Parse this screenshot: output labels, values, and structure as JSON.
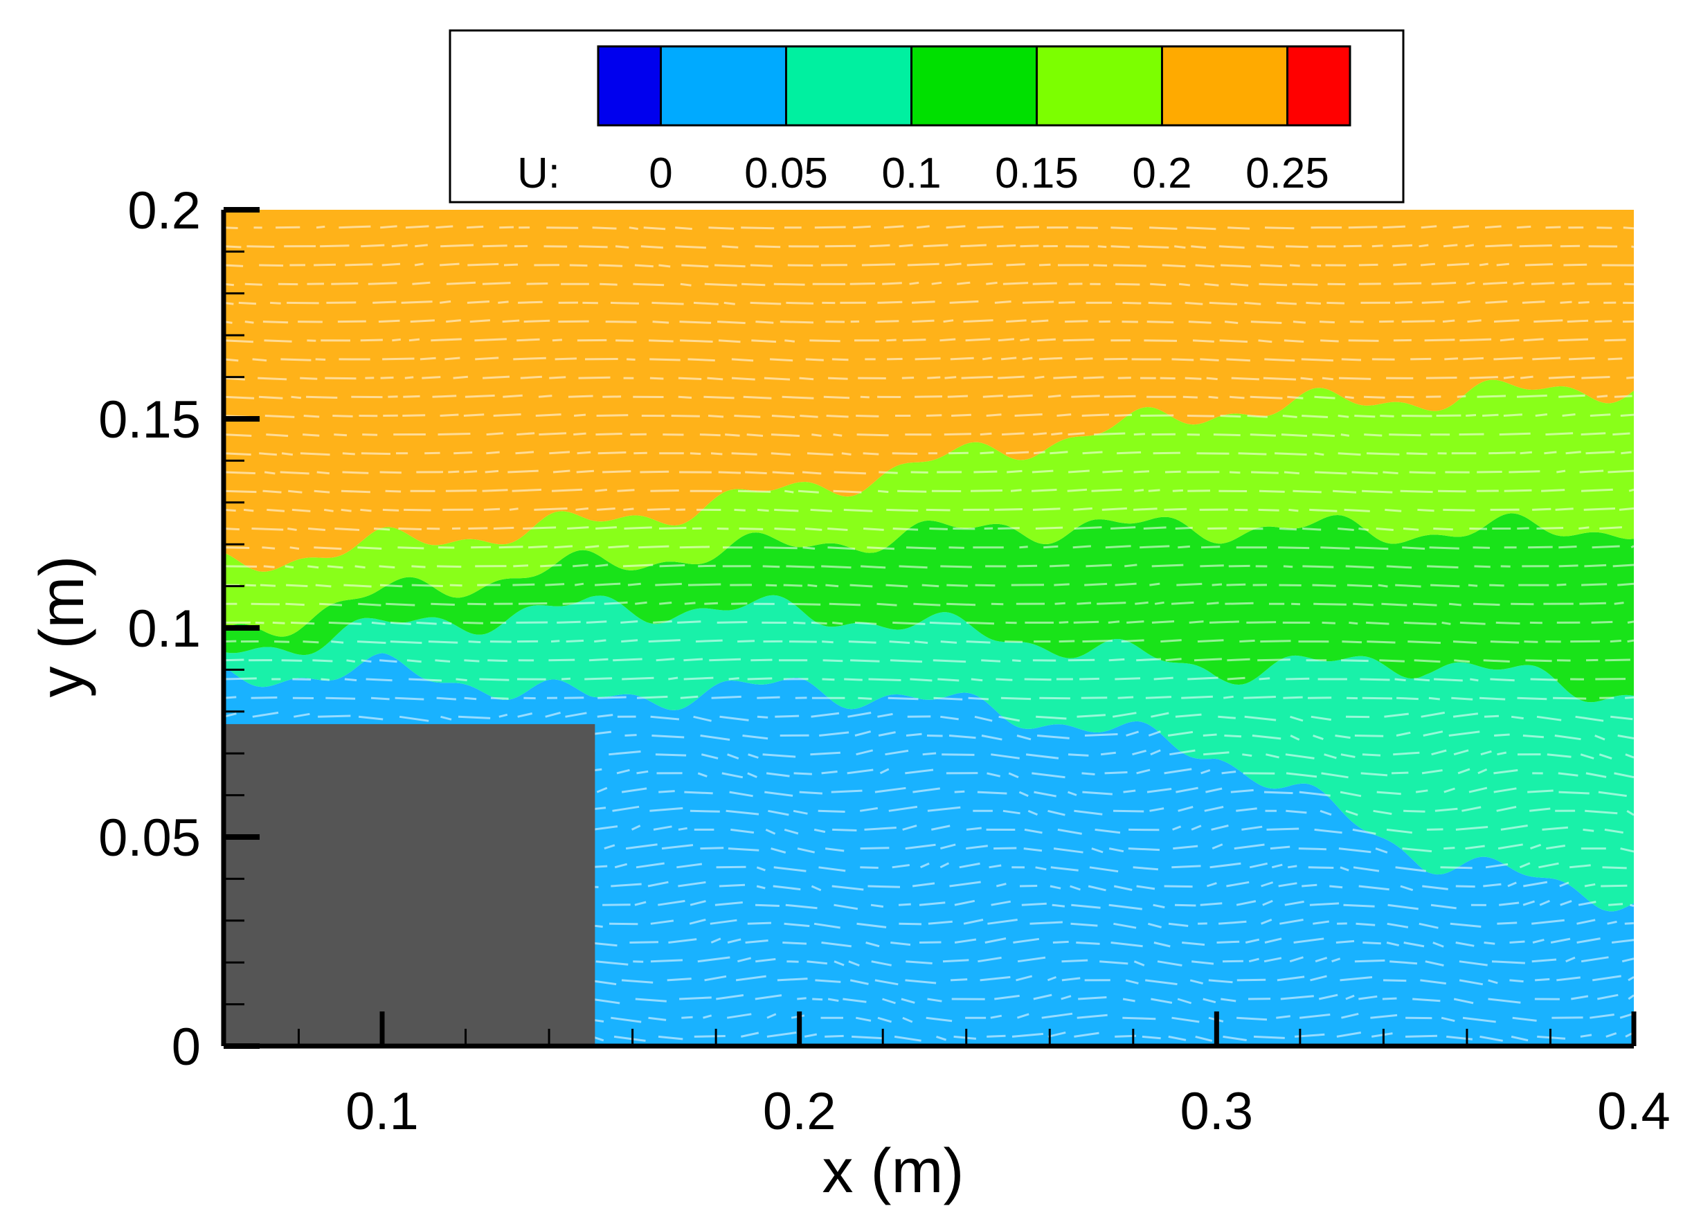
{
  "chart_data": {
    "type": "heatmap",
    "title": "",
    "xlabel": "x (m)",
    "ylabel": "y (m)",
    "xlim": [
      0.062,
      0.4
    ],
    "ylim": [
      0,
      0.2
    ],
    "x_ticks": [
      0.1,
      0.2,
      0.3,
      0.4
    ],
    "x_tick_labels": [
      "0.1",
      "0.2",
      "0.3",
      "0.4"
    ],
    "y_ticks": [
      0,
      0.05,
      0.1,
      0.15,
      0.2
    ],
    "y_tick_labels": [
      "0",
      "0.05",
      "0.1",
      "0.15",
      "0.2"
    ],
    "grid": false,
    "legend_position": "top-center",
    "colorbar": {
      "label": "U:",
      "levels": [
        -0.025,
        0,
        0.05,
        0.1,
        0.15,
        0.2,
        0.25,
        0.275
      ],
      "tick_values": [
        0,
        0.05,
        0.1,
        0.15,
        0.2,
        0.25
      ],
      "tick_labels": [
        "0",
        "0.05",
        "0.1",
        "0.15",
        "0.2",
        "0.25"
      ],
      "colors": [
        "#0000ee",
        "#00aaff",
        "#00f0a0",
        "#00e000",
        "#7cff00",
        "#ffaa00",
        "#ff0000"
      ]
    },
    "obstacle": {
      "x": [
        0.062,
        0.151
      ],
      "y": [
        0,
        0.077
      ],
      "color": "#555555"
    },
    "field": {
      "x": [
        0.062,
        0.1,
        0.15,
        0.2,
        0.25,
        0.3,
        0.35,
        0.4
      ],
      "contours": [
        {
          "level": 0.05,
          "y": [
            0.088,
            0.09,
            0.083,
            0.086,
            0.08,
            0.07,
            0.045,
            0.035
          ]
        },
        {
          "level": 0.1,
          "y": [
            0.094,
            0.1,
            0.105,
            0.104,
            0.098,
            0.09,
            0.092,
            0.084
          ]
        },
        {
          "level": 0.15,
          "y": [
            0.098,
            0.108,
            0.115,
            0.12,
            0.124,
            0.124,
            0.123,
            0.124
          ]
        },
        {
          "level": 0.2,
          "y": [
            0.115,
            0.12,
            0.125,
            0.133,
            0.143,
            0.152,
            0.155,
            0.158
          ]
        }
      ],
      "vector_spacing": 0.0045
    }
  }
}
